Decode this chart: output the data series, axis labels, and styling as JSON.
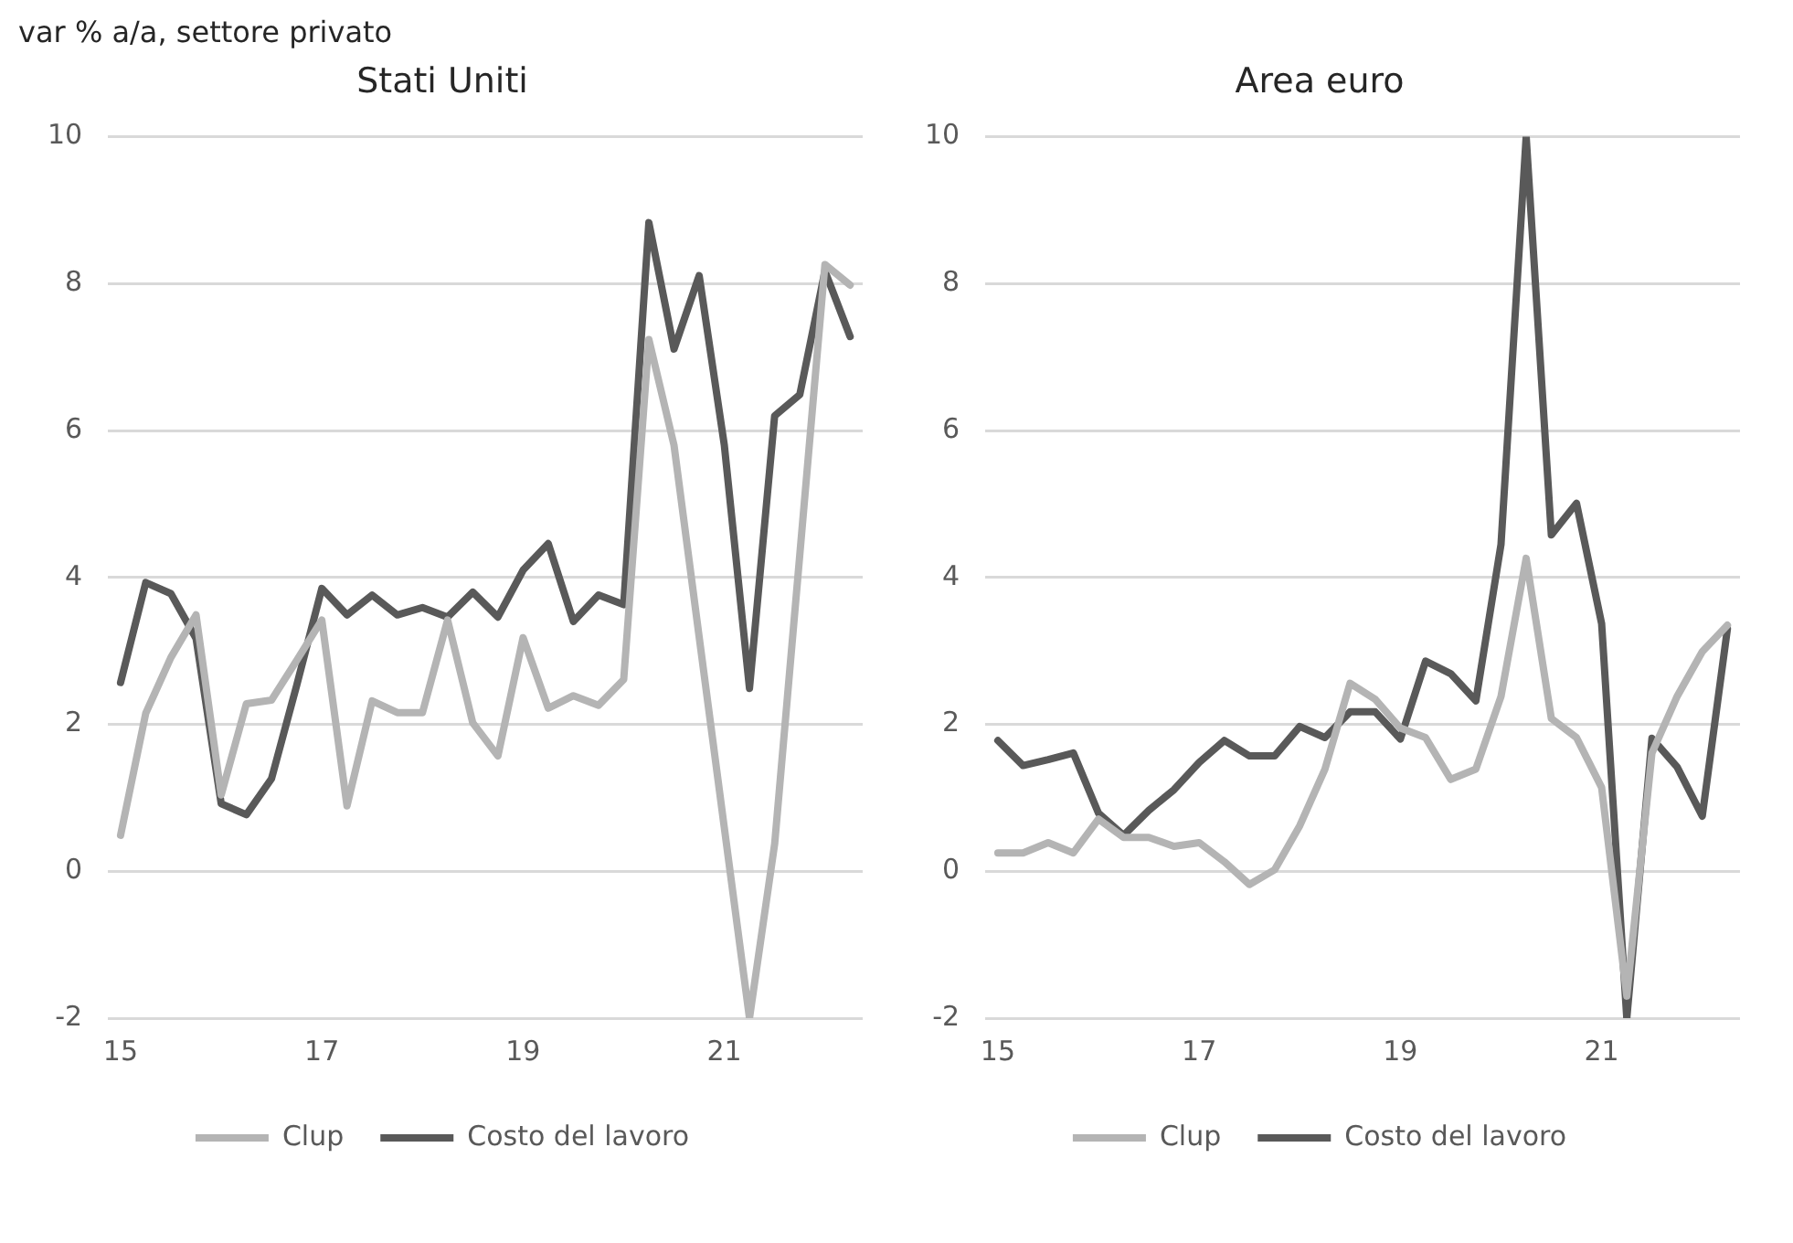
{
  "chart_data": [
    {
      "type": "line",
      "title": "Stati Uniti",
      "ylabel": "var % a/a, settore privato",
      "categories": [
        "15",
        null,
        null,
        null,
        null,
        null,
        null,
        null,
        "17",
        null,
        null,
        null,
        null,
        null,
        null,
        null,
        "19",
        null,
        null,
        null,
        null,
        null,
        null,
        null,
        "21",
        null,
        null,
        null,
        null,
        null
      ],
      "series": [
        {
          "name": "Clup",
          "color": "#b4b4b4",
          "values": [
            0.49,
            2.15,
            2.91,
            3.49,
            1.04,
            2.28,
            2.33,
            2.87,
            3.42,
            0.89,
            2.32,
            2.16,
            2.16,
            3.42,
            2.02,
            1.57,
            3.18,
            2.22,
            2.39,
            2.26,
            2.61,
            7.24,
            5.8,
            3.19,
            0.59,
            -2,
            0.37,
            4.31,
            8.26,
            7.98
          ]
        },
        {
          "name": "Costo del lavoro",
          "color": "#595959",
          "values": [
            2.57,
            3.93,
            3.78,
            3.17,
            0.92,
            0.77,
            1.26,
            2.53,
            3.85,
            3.49,
            3.76,
            3.49,
            3.59,
            3.46,
            3.8,
            3.46,
            4.1,
            4.46,
            3.4,
            3.76,
            3.63,
            8.83,
            7.11,
            8.11,
            5.8,
            2.49,
            6.2,
            6.49,
            8.17,
            7.28
          ]
        }
      ],
      "ylim": [
        -2,
        10
      ],
      "yticks": [
        -2,
        0,
        2,
        4,
        6,
        8,
        10
      ],
      "grid": "y",
      "legend": "bottom",
      "marker": "none",
      "line_style": "solid"
    },
    {
      "type": "line",
      "title": "Area euro",
      "categories": [
        "15",
        null,
        null,
        null,
        null,
        null,
        null,
        null,
        "17",
        null,
        null,
        null,
        null,
        null,
        null,
        null,
        "19",
        null,
        null,
        null,
        null,
        null,
        null,
        null,
        "21",
        null,
        null,
        null,
        null,
        null
      ],
      "series": [
        {
          "name": "Clup",
          "color": "#b4b4b4",
          "values": [
            0.25,
            0.25,
            0.39,
            0.25,
            0.71,
            0.46,
            0.46,
            0.34,
            0.39,
            0.13,
            -0.18,
            0.02,
            0.62,
            1.39,
            2.56,
            2.34,
            1.95,
            1.82,
            1.25,
            1.39,
            2.38,
            4.26,
            2.08,
            1.82,
            1.14,
            -1.7,
            1.61,
            2.38,
            2.99,
            3.35
          ]
        },
        {
          "name": "Costo del lavoro",
          "color": "#595959",
          "values": [
            1.78,
            1.44,
            1.52,
            1.61,
            0.79,
            0.49,
            0.83,
            1.11,
            1.48,
            1.78,
            1.57,
            1.57,
            1.97,
            1.82,
            2.17,
            2.17,
            1.8,
            2.86,
            2.69,
            2.32,
            4.45,
            10,
            4.58,
            5.01,
            3.37,
            -2,
            1.81,
            1.42,
            0.75,
            3.3
          ]
        }
      ],
      "ylim": [
        -2,
        10
      ],
      "yticks": [
        -2,
        0,
        2,
        4,
        6,
        8,
        10
      ],
      "grid": "y",
      "legend": "bottom",
      "marker": "none",
      "line_style": "solid"
    }
  ]
}
